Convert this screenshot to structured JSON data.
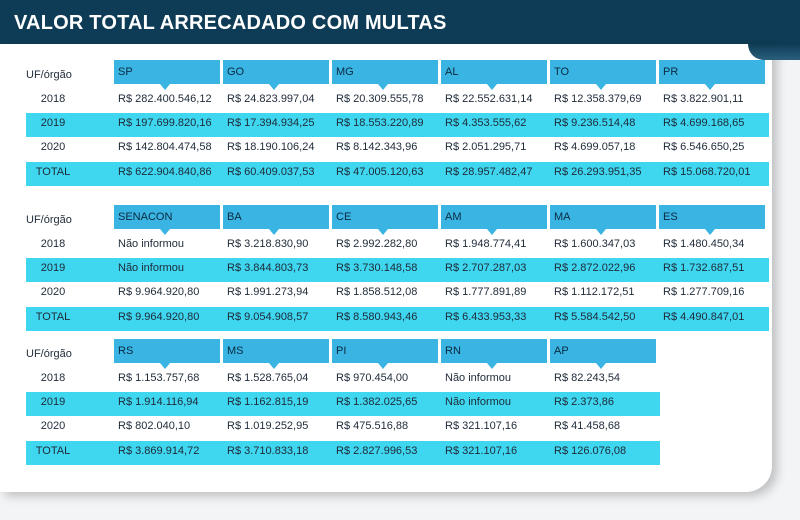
{
  "title": "VALOR TOTAL ARRECADADO COM MULTAS",
  "row_label": "UF/órgão",
  "colors": {
    "header": "#0e3c56",
    "col_header": "#3ab4e3",
    "band": "#3fd6ef"
  },
  "tables": [
    {
      "columns": [
        "SP",
        "GO",
        "MG",
        "AL",
        "TO",
        "PR"
      ],
      "rows": [
        {
          "label": "2018",
          "values": [
            "R$ 282.400.546,12",
            "R$ 24.823.997,04",
            "R$ 20.309.555,78",
            "R$ 22.552.631,14",
            "R$ 12.358.379,69",
            "R$ 3.822.901,11"
          ]
        },
        {
          "label": "2019",
          "values": [
            "R$ 197.699.820,16",
            "R$ 17.394.934,25",
            "R$ 18.553.220,89",
            "R$ 4.353.555,62",
            "R$ 9.236.514,48",
            "R$ 4.699.168,65"
          ]
        },
        {
          "label": "2020",
          "values": [
            "R$ 142.804.474,58",
            "R$ 18.190.106,24",
            "R$ 8.142.343,96",
            "R$ 2.051.295,71",
            "R$ 4.699.057,18",
            "R$ 6.546.650,25"
          ]
        },
        {
          "label": "TOTAL",
          "values": [
            "R$ 622.904.840,86",
            "R$ 60.409.037,53",
            "R$ 47.005.120,63",
            "R$ 28.957.482,47",
            "R$ 26.293.951,35",
            "R$ 15.068.720,01"
          ]
        }
      ]
    },
    {
      "columns": [
        "SENACON",
        "BA",
        "CE",
        "AM",
        "MA",
        "ES"
      ],
      "rows": [
        {
          "label": "2018",
          "values": [
            "Não informou",
            "R$ 3.218.830,90",
            "R$ 2.992.282,80",
            "R$ 1.948.774,41",
            "R$ 1.600.347,03",
            "R$ 1.480.450,34"
          ]
        },
        {
          "label": "2019",
          "values": [
            "Não informou",
            "R$ 3.844.803,73",
            "R$ 3.730.148,58",
            "R$ 2.707.287,03",
            "R$ 2.872.022,96",
            "R$ 1.732.687,51"
          ]
        },
        {
          "label": "2020",
          "values": [
            "R$ 9.964.920,80",
            "R$ 1.991.273,94",
            "R$ 1.858.512,08",
            "R$ 1.777.891,89",
            "R$ 1.112.172,51",
            "R$ 1.277.709,16"
          ]
        },
        {
          "label": "TOTAL",
          "values": [
            "R$ 9.964.920,80",
            "R$ 9.054.908,57",
            "R$ 8.580.943,46",
            "R$ 6.433.953,33",
            "R$ 5.584.542,50",
            "R$ 4.490.847,01"
          ]
        }
      ]
    },
    {
      "columns": [
        "RS",
        "MS",
        "PI",
        "RN",
        "AP"
      ],
      "rows": [
        {
          "label": "2018",
          "values": [
            "R$ 1.153.757,68",
            "R$ 1.528.765,04",
            "R$ 970.454,00",
            "Não informou",
            "R$ 82.243,54"
          ]
        },
        {
          "label": "2019",
          "values": [
            "R$ 1.914.116,94",
            "R$ 1.162.815,19",
            "R$ 1.382.025,65",
            "Não informou",
            "R$ 2.373,86"
          ]
        },
        {
          "label": "2020",
          "values": [
            "R$ 802.040,10",
            "R$ 1.019.252,95",
            "R$ 475.516,88",
            "R$ 321.107,16",
            "R$ 41.458,68"
          ]
        },
        {
          "label": "TOTAL",
          "values": [
            "R$ 3.869.914,72",
            "R$ 3.710.833,18",
            "R$ 2.827.996,53",
            "R$ 321.107,16",
            "R$ 126.076,08"
          ]
        }
      ]
    }
  ]
}
